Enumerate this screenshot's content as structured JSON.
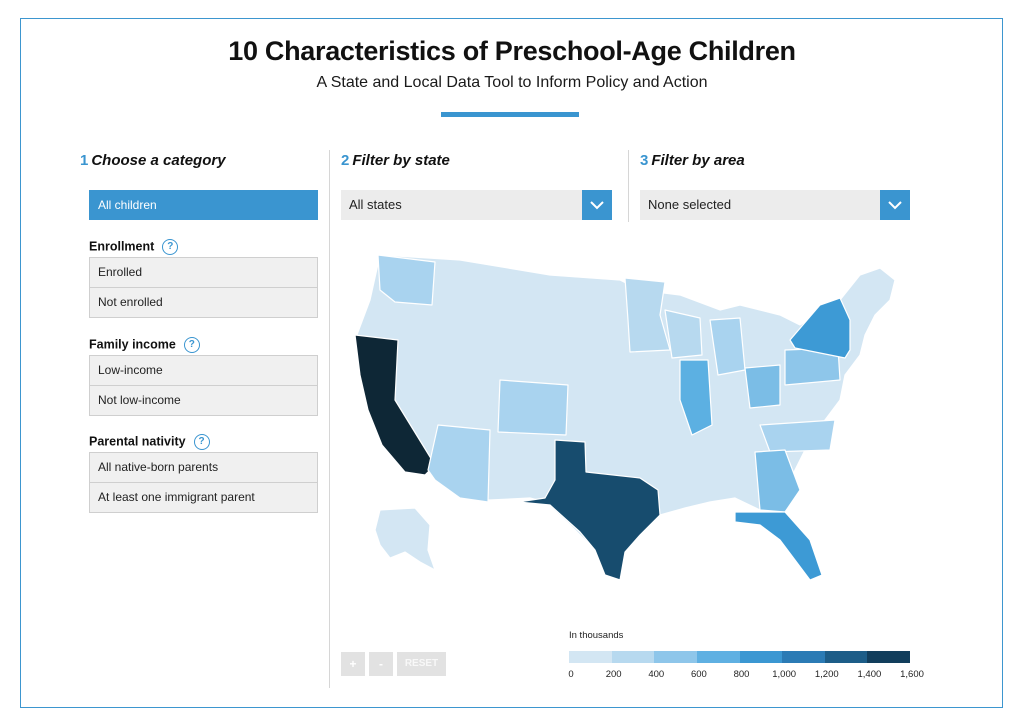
{
  "header": {
    "title": "10 Characteristics of Preschool-Age Children",
    "subtitle": "A State and Local Data Tool to Inform Policy and Action"
  },
  "steps": [
    {
      "num": "1",
      "label": "Choose a category"
    },
    {
      "num": "2",
      "label": "Filter by state"
    },
    {
      "num": "3",
      "label": "Filter by area"
    }
  ],
  "category": {
    "active": "All children",
    "groups": [
      {
        "title": "Enrollment",
        "help": "?",
        "options": [
          "Enrolled",
          "Not enrolled"
        ]
      },
      {
        "title": "Family income",
        "help": "?",
        "options": [
          "Low-income",
          "Not low-income"
        ]
      },
      {
        "title": "Parental nativity",
        "help": "?",
        "options": [
          "All native-born parents",
          "At least one immigrant parent"
        ]
      }
    ]
  },
  "filters": {
    "state": "All states",
    "area": "None selected"
  },
  "map_controls": {
    "zoom_in": "+",
    "zoom_out": "-",
    "reset": "RESET"
  },
  "legend": {
    "title": "In thousands",
    "ticks": [
      "0",
      "200",
      "400",
      "600",
      "800",
      "1,000",
      "1,200",
      "1,400",
      "1,600"
    ],
    "colors": [
      "#d3e6f3",
      "#b7d9ef",
      "#8ec6ea",
      "#5fb0e2",
      "#3b97d2",
      "#2b7bb5",
      "#1d5d88",
      "#123e5c",
      "#0b2232"
    ]
  },
  "map_regions": [
    {
      "name": "California",
      "color": "#0e2736"
    },
    {
      "name": "Texas",
      "color": "#174c6e"
    },
    {
      "name": "Florida",
      "color": "#3d9ad5"
    },
    {
      "name": "New York",
      "color": "#3d9ad5"
    },
    {
      "name": "Illinois",
      "color": "#5cb0e2"
    },
    {
      "name": "Georgia",
      "color": "#7bbde6"
    },
    {
      "name": "Ohio",
      "color": "#7bbde6"
    },
    {
      "name": "Pennsylvania",
      "color": "#8ec6ea"
    },
    {
      "name": "Arizona",
      "color": "#a9d3ef"
    },
    {
      "name": "Washington",
      "color": "#a9d3ef"
    },
    {
      "name": "Colorado",
      "color": "#a9d3ef"
    },
    {
      "name": "Minnesota",
      "color": "#b7d9ef"
    },
    {
      "name": "Michigan",
      "color": "#a9d3ef"
    },
    {
      "name": "North Carolina",
      "color": "#a9d3ef"
    }
  ]
}
